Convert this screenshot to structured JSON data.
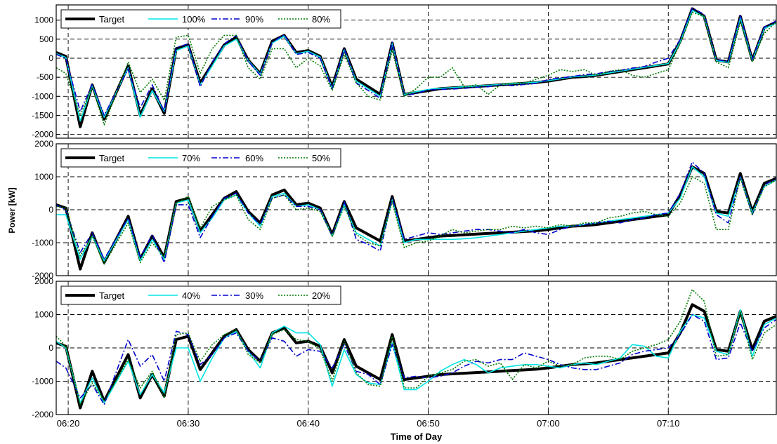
{
  "chart_data": {
    "type": "line",
    "xlabel": "Time of Day",
    "ylabel": "Power [kW]",
    "x_ticks": [
      "06:20",
      "06:30",
      "06:40",
      "06:50",
      "07:00",
      "07:10"
    ],
    "x_tick_values": [
      1,
      11,
      21,
      31,
      41,
      51
    ],
    "xlim": [
      0,
      60
    ],
    "grid": true,
    "legend_position": "top-left",
    "x": [
      0,
      0.8,
      2,
      3,
      4,
      6,
      7,
      8,
      9,
      10,
      11,
      12,
      13,
      14,
      15,
      16,
      17,
      18,
      19,
      20,
      21,
      22,
      23,
      24,
      25,
      26,
      27,
      28,
      29,
      30,
      31,
      32,
      33,
      34,
      35,
      36,
      37,
      38,
      39,
      40,
      41,
      42,
      43,
      44,
      45,
      46,
      47,
      48,
      49,
      50,
      51,
      52,
      53,
      54,
      55,
      56,
      57,
      58,
      59,
      60
    ],
    "colors": {
      "target": "#000000",
      "cyan": "#00e5e5",
      "blue": "#0000cc",
      "green": "#007a00"
    },
    "panels": [
      {
        "ylim": [
          -2100,
          1400
        ],
        "y_ticks": [
          -2000,
          -1500,
          -1000,
          -500,
          0,
          500,
          1000
        ],
        "series": [
          {
            "name": "Target",
            "style": "target",
            "values": [
              150,
              50,
              -1800,
              -700,
              -1600,
              -200,
              -1500,
              -800,
              -1450,
              250,
              350,
              -650,
              -150,
              350,
              550,
              -50,
              -400,
              450,
              600,
              150,
              200,
              50,
              -750,
              250,
              -550,
              -750,
              -950,
              400,
              -950,
              -900,
              -850,
              -800,
              -780,
              -760,
              -740,
              -720,
              -700,
              -680,
              -660,
              -640,
              -600,
              -550,
              -500,
              -480,
              -450,
              -400,
              -350,
              -300,
              -250,
              -200,
              -150,
              450,
              1300,
              1100,
              -50,
              -100,
              1100,
              -50,
              800,
              950
            ]
          },
          {
            "name": "100%",
            "style": "cyan",
            "values": [
              120,
              20,
              -1650,
              -730,
              -1550,
              -250,
              -1550,
              -850,
              -1400,
              200,
              320,
              -700,
              -200,
              320,
              500,
              -60,
              -420,
              400,
              580,
              120,
              180,
              30,
              -790,
              230,
              -600,
              -800,
              -1000,
              380,
              -950,
              -880,
              -820,
              -790,
              -770,
              -750,
              -730,
              -710,
              -690,
              -670,
              -650,
              -630,
              -590,
              -540,
              -490,
              -470,
              -440,
              -390,
              -340,
              -290,
              -240,
              -190,
              -140,
              430,
              1260,
              1080,
              -60,
              -110,
              1070,
              -60,
              780,
              920
            ]
          },
          {
            "name": "90%",
            "style": "dashdot-blue",
            "values": [
              100,
              0,
              -1400,
              -680,
              -1500,
              -280,
              -1300,
              -700,
              -1400,
              280,
              380,
              -750,
              -100,
              380,
              600,
              -80,
              -450,
              420,
              620,
              100,
              150,
              0,
              -800,
              260,
              -650,
              -850,
              -1050,
              420,
              -980,
              -930,
              -830,
              -820,
              -810,
              -790,
              -760,
              -750,
              -700,
              -720,
              -690,
              -660,
              -560,
              -520,
              -480,
              -430,
              -410,
              -350,
              -320,
              -260,
              -220,
              -100,
              0,
              500,
              1320,
              1150,
              -40,
              -80,
              1120,
              -30,
              820,
              980
            ]
          },
          {
            "name": "80%",
            "style": "dotted-green",
            "values": [
              -250,
              -400,
              -1500,
              -750,
              -1750,
              -100,
              -900,
              -550,
              -1100,
              550,
              600,
              -400,
              250,
              600,
              600,
              -250,
              -550,
              250,
              250,
              -250,
              0,
              -200,
              -850,
              100,
              -650,
              -1000,
              -1100,
              200,
              -1000,
              -800,
              -500,
              -500,
              -250,
              -750,
              -700,
              -950,
              -700,
              -650,
              -650,
              -550,
              -450,
              -300,
              -350,
              -300,
              -450,
              -350,
              -300,
              -450,
              -500,
              -400,
              -300,
              400,
              1200,
              1100,
              -100,
              -250,
              950,
              -100,
              650,
              950
            ]
          }
        ]
      },
      {
        "ylim": [
          -2000,
          2000
        ],
        "y_ticks": [
          -2000,
          -1000,
          0,
          1000,
          2000
        ],
        "series": [
          {
            "name": "Target",
            "style": "target",
            "values": [
              150,
              50,
              -1800,
              -700,
              -1600,
              -200,
              -1500,
              -800,
              -1450,
              250,
              350,
              -650,
              -150,
              350,
              550,
              -50,
              -400,
              450,
              600,
              150,
              200,
              50,
              -750,
              250,
              -550,
              -750,
              -950,
              400,
              -950,
              -900,
              -850,
              -800,
              -780,
              -760,
              -740,
              -720,
              -700,
              -680,
              -660,
              -640,
              -600,
              -550,
              -500,
              -480,
              -450,
              -400,
              -350,
              -300,
              -250,
              -200,
              -150,
              450,
              1300,
              1100,
              -50,
              -100,
              1100,
              -50,
              800,
              950
            ]
          },
          {
            "name": "70%",
            "style": "cyan",
            "values": [
              -150,
              -150,
              -1500,
              -800,
              -1550,
              -300,
              -1550,
              -900,
              -1500,
              200,
              300,
              -700,
              -250,
              300,
              450,
              -100,
              -500,
              400,
              500,
              100,
              150,
              0,
              -800,
              150,
              -700,
              -900,
              -1100,
              300,
              -1000,
              -900,
              -900,
              -900,
              -900,
              -880,
              -850,
              -800,
              -750,
              -700,
              -650,
              -600,
              -550,
              -500,
              -500,
              -450,
              -400,
              -350,
              -300,
              -250,
              -200,
              -150,
              -100,
              350,
              1300,
              1000,
              -100,
              -200,
              1000,
              -100,
              700,
              900
            ]
          },
          {
            "name": "60%",
            "style": "dashdot-blue",
            "values": [
              150,
              0,
              -1300,
              -700,
              -1500,
              -250,
              -1450,
              -750,
              -1600,
              150,
              150,
              -850,
              -200,
              350,
              500,
              -100,
              -450,
              350,
              450,
              100,
              100,
              0,
              -800,
              250,
              -900,
              -1050,
              -1250,
              350,
              -900,
              -800,
              -700,
              -750,
              -700,
              -650,
              -600,
              -600,
              -650,
              -700,
              -600,
              -700,
              -750,
              -600,
              -500,
              -450,
              -400,
              -350,
              -400,
              -300,
              -250,
              -150,
              -100,
              500,
              1450,
              1100,
              -150,
              -400,
              1000,
              -150,
              750,
              950
            ]
          },
          {
            "name": "50%",
            "style": "dotted-green",
            "values": [
              100,
              50,
              -1400,
              -800,
              -1650,
              -400,
              -1600,
              -1000,
              -1450,
              200,
              400,
              -550,
              100,
              300,
              450,
              -300,
              -600,
              350,
              450,
              0,
              50,
              -50,
              -800,
              100,
              -750,
              -1000,
              -1100,
              250,
              -1150,
              -1000,
              -950,
              -800,
              -600,
              -700,
              -650,
              -600,
              -600,
              -500,
              -550,
              -500,
              -550,
              -450,
              -500,
              -400,
              -400,
              -250,
              -200,
              -100,
              -50,
              -150,
              -200,
              200,
              1000,
              800,
              -600,
              -600,
              950,
              -150,
              700,
              900
            ]
          }
        ]
      },
      {
        "ylim": [
          -2000,
          2000
        ],
        "y_ticks": [
          -2000,
          -1000,
          0,
          1000,
          2000
        ],
        "series": [
          {
            "name": "Target",
            "style": "target",
            "values": [
              150,
              50,
              -1800,
              -700,
              -1600,
              -200,
              -1500,
              -800,
              -1450,
              250,
              350,
              -650,
              -150,
              350,
              550,
              -50,
              -400,
              450,
              600,
              150,
              200,
              50,
              -750,
              250,
              -550,
              -750,
              -950,
              400,
              -950,
              -900,
              -850,
              -800,
              -780,
              -760,
              -740,
              -720,
              -700,
              -680,
              -660,
              -640,
              -600,
              -550,
              -500,
              -480,
              -450,
              -400,
              -350,
              -300,
              -250,
              -200,
              -150,
              450,
              1300,
              1100,
              -50,
              -100,
              1100,
              -50,
              800,
              950
            ]
          },
          {
            "name": "40%",
            "style": "cyan",
            "values": [
              200,
              0,
              -1650,
              -900,
              -1650,
              -400,
              -1400,
              -800,
              -1350,
              0,
              0,
              -1000,
              -300,
              300,
              500,
              -100,
              -600,
              450,
              650,
              450,
              450,
              100,
              -1150,
              -50,
              -800,
              -1050,
              -1100,
              150,
              -1250,
              -1250,
              -1000,
              -700,
              -500,
              -350,
              -500,
              -750,
              -600,
              -550,
              -500,
              -500,
              -550,
              -600,
              -500,
              -450,
              -500,
              -400,
              -300,
              100,
              50,
              -250,
              -300,
              500,
              1000,
              900,
              -100,
              -200,
              1150,
              -250,
              700,
              900
            ]
          },
          {
            "name": "30%",
            "style": "dashdot-blue",
            "values": [
              -400,
              -600,
              -1500,
              -1100,
              -1700,
              250,
              -550,
              -200,
              -1000,
              500,
              400,
              -500,
              -200,
              300,
              450,
              -100,
              -400,
              300,
              200,
              -250,
              -50,
              -100,
              -600,
              100,
              -700,
              -800,
              -1100,
              100,
              -900,
              -850,
              -900,
              -850,
              -750,
              -550,
              -400,
              -450,
              -350,
              -350,
              -150,
              -250,
              -350,
              -500,
              -600,
              -650,
              -650,
              -550,
              -450,
              -200,
              -100,
              -50,
              0,
              400,
              1000,
              800,
              -350,
              -300,
              750,
              -100,
              600,
              850
            ]
          },
          {
            "name": "20%",
            "style": "dotted-green",
            "values": [
              350,
              50,
              -1700,
              -1050,
              -1600,
              -350,
              -1200,
              -700,
              -1500,
              400,
              450,
              -400,
              100,
              400,
              550,
              -200,
              -450,
              400,
              550,
              250,
              200,
              -50,
              -1000,
              200,
              -750,
              -1100,
              -1150,
              350,
              -1200,
              -1200,
              -850,
              -750,
              -650,
              -400,
              -350,
              -550,
              -450,
              -950,
              -500,
              -600,
              -400,
              -550,
              -500,
              -300,
              -250,
              -250,
              -350,
              -100,
              0,
              100,
              250,
              800,
              1750,
              1400,
              -250,
              -200,
              1100,
              -350,
              450,
              700
            ]
          }
        ]
      }
    ]
  }
}
